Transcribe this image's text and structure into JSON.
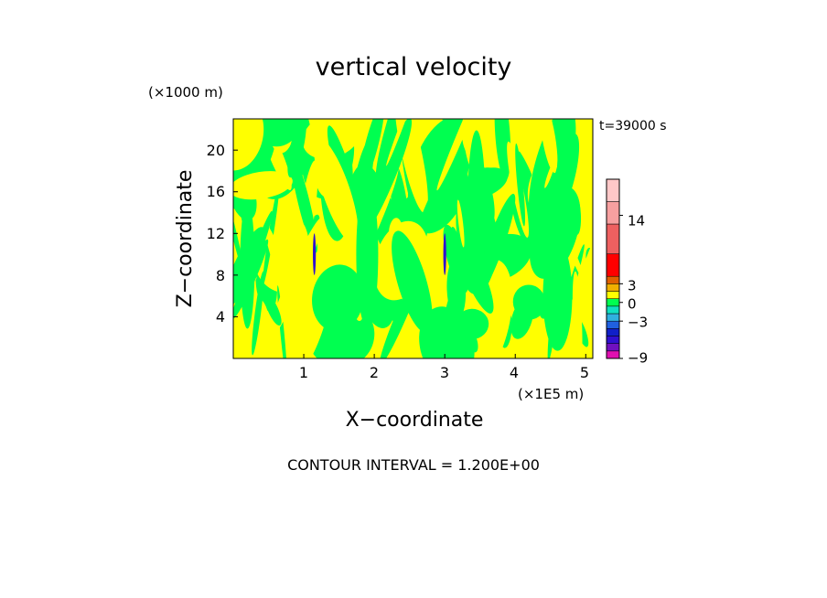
{
  "chart_data": {
    "type": "heatmap",
    "title": "vertical velocity",
    "xlabel": "X−coordinate",
    "ylabel": "Z−coordinate",
    "x_unit": "(×1E5 m)",
    "y_unit": "(×1000 m)",
    "time_label": "t=39000 s",
    "contour_interval_label": "CONTOUR INTERVAL = 1.200E+00",
    "x_ticks": [
      1,
      2,
      3,
      4,
      5
    ],
    "y_ticks": [
      4,
      8,
      12,
      16,
      20
    ],
    "xlim": [
      0,
      5.1
    ],
    "ylim": [
      0,
      23
    ],
    "grid": false,
    "colorbar": {
      "position": "right",
      "tick_labels": [
        {
          "label": "14",
          "value": 14
        },
        {
          "label": "3",
          "value": 3
        },
        {
          "label": "0",
          "value": 0
        },
        {
          "label": "−3",
          "value": -3
        },
        {
          "label": "−9",
          "value": -9
        }
      ],
      "bands": [
        {
          "level": -9,
          "color": "#e010b0"
        },
        {
          "level": -7.8,
          "color": "#7010c0"
        },
        {
          "level": -6.6,
          "color": "#3010d0"
        },
        {
          "level": -5.4,
          "color": "#1020c8"
        },
        {
          "level": -4.2,
          "color": "#2060e0"
        },
        {
          "level": -3,
          "color": "#30b0e0"
        },
        {
          "level": -1.8,
          "color": "#10e0c0"
        },
        {
          "level": -0.6,
          "color": "#00ff50"
        },
        {
          "level": 0.6,
          "color": "#ffff00"
        },
        {
          "level": 1.8,
          "color": "#f0b000"
        },
        {
          "level": 3,
          "color": "#e06000"
        },
        {
          "level": 4.2,
          "color": "#ff0000"
        },
        {
          "level": 7.8,
          "color": "#ee6060"
        },
        {
          "level": 12.6,
          "color": "#f7a0a0"
        },
        {
          "level": 16.2,
          "color": "#ffc8c8"
        }
      ]
    },
    "field_summary": {
      "dominant_colors": [
        "#00ff50",
        "#ffff00"
      ],
      "extreme_features": [
        {
          "x": 1.15,
          "z_range": [
            8,
            12
          ],
          "color": "#3010d0"
        },
        {
          "x": 3.0,
          "z_range": [
            8,
            12
          ],
          "color": "#3010d0"
        }
      ]
    }
  }
}
